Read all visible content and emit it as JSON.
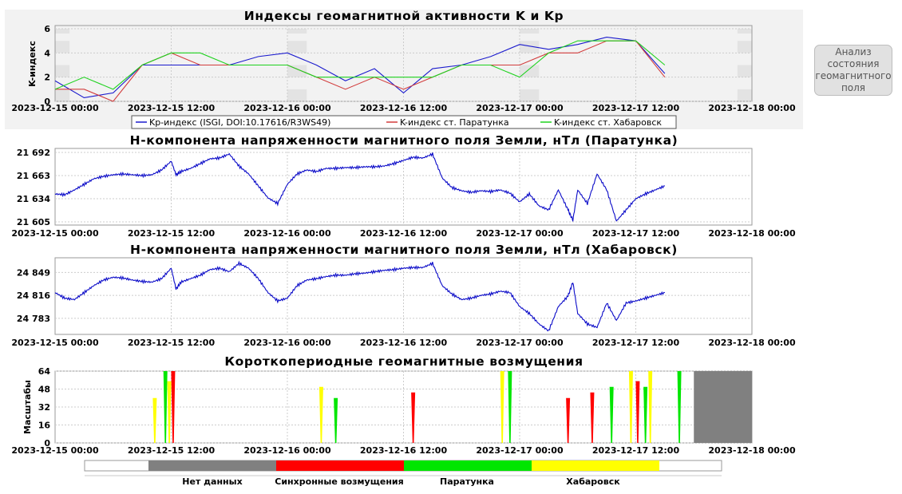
{
  "analyze_button": {
    "label": "Анализ\nсостояния\nгеомагнитного\nполя"
  },
  "time_axis": {
    "start": "2023-12-15 00:00",
    "end": "2023-12-18 00:00",
    "tick_labels": [
      "2023-12-15 00:00",
      "2023-12-15 12:00",
      "2023-12-16 00:00",
      "2023-12-16 12:00",
      "2023-12-17 00:00",
      "2023-12-17 12:00",
      "2023-12-18 00:00"
    ]
  },
  "chart_data": [
    {
      "id": "k-kp",
      "type": "line",
      "title": "Индексы геомагнитной активности K и Kp",
      "xlabel": "",
      "ylabel": "K-индекс",
      "ylim": [
        0,
        6
      ],
      "y_ticks": [
        "0",
        "2",
        "4",
        "6"
      ],
      "legend_position": "bottom",
      "shaded_bands": "alternating gray bands at y 0–1, 2–3, 4–5, 6 near day boundaries",
      "series": [
        {
          "name": "Kp-индекс (ISGI, DOI:10.17616/R3WS49)",
          "color": "#1a1acd",
          "x": [
            0,
            3,
            6,
            9,
            12,
            15,
            18,
            21,
            24,
            27,
            30,
            33,
            36,
            39,
            42,
            45,
            48,
            51,
            54,
            57,
            60,
            63
          ],
          "y": [
            1.7,
            0.3,
            0.7,
            3,
            3,
            3,
            3,
            3.7,
            4,
            3,
            1.7,
            2.7,
            0.7,
            2.7,
            3,
            3.7,
            4.7,
            4.3,
            4.7,
            5.3,
            5,
            2.3
          ]
        },
        {
          "name": "K-индекс ст. Паратунка",
          "color": "#d23c3c",
          "x": [
            0,
            3,
            6,
            9,
            12,
            15,
            18,
            21,
            24,
            27,
            30,
            33,
            36,
            39,
            42,
            45,
            48,
            51,
            54,
            57,
            60,
            63
          ],
          "y": [
            1,
            1,
            0,
            3,
            4,
            3,
            3,
            3,
            3,
            2,
            1,
            2,
            1,
            2,
            3,
            3,
            3,
            4,
            4,
            5,
            5,
            2
          ]
        },
        {
          "name": "K-индекс ст. Хабаровск",
          "color": "#1ed21e",
          "x": [
            0,
            3,
            6,
            9,
            12,
            15,
            18,
            21,
            24,
            27,
            30,
            33,
            36,
            39,
            42,
            45,
            48,
            51,
            54,
            57,
            60,
            63
          ],
          "y": [
            1,
            2,
            1,
            3,
            4,
            4,
            3,
            3,
            3,
            2,
            2,
            2,
            2,
            2,
            3,
            3,
            2,
            4,
            5,
            5,
            5,
            3
          ]
        }
      ]
    },
    {
      "id": "h-paratunka",
      "type": "line",
      "title": "H-компонента напряженности магнитного поля Земли, нТл (Паратунка)",
      "xlabel": "",
      "ylabel": "",
      "ylim": [
        21601,
        21697
      ],
      "y_ticks": [
        "21 605",
        "21 634",
        "21 663",
        "21 692"
      ],
      "series": [
        {
          "name": "",
          "color": "#0a0ac8",
          "x": [
            0,
            1,
            2,
            3,
            4,
            5,
            6,
            7,
            8,
            9,
            10,
            11,
            12,
            12.5,
            13,
            14,
            15,
            16,
            17,
            18,
            19,
            20,
            21,
            22,
            23,
            24,
            25,
            26,
            27,
            28,
            29,
            30,
            31,
            32,
            33,
            34,
            35,
            36,
            37,
            38,
            39,
            40,
            41,
            42,
            43,
            44,
            45,
            46,
            47,
            48,
            49,
            50,
            51,
            52,
            53,
            53.5,
            54,
            55,
            56,
            57,
            58,
            59,
            60,
            61,
            62,
            63
          ],
          "y": [
            21640,
            21639,
            21645,
            21652,
            21659,
            21662,
            21664,
            21665,
            21664,
            21663,
            21664,
            21670,
            21681,
            21664,
            21668,
            21672,
            21678,
            21684,
            21685,
            21690,
            21675,
            21665,
            21650,
            21635,
            21628,
            21652,
            21665,
            21670,
            21668,
            21672,
            21672,
            21673,
            21673,
            21674,
            21674,
            21675,
            21678,
            21682,
            21686,
            21685,
            21690,
            21660,
            21648,
            21644,
            21642,
            21644,
            21643,
            21645,
            21641,
            21630,
            21640,
            21625,
            21620,
            21645,
            21620,
            21607,
            21645,
            21628,
            21665,
            21645,
            21606,
            21620,
            21634,
            21640,
            21645,
            21650
          ]
        }
      ]
    },
    {
      "id": "h-khabarovsk",
      "type": "line",
      "title": "H-компонента напряженности магнитного поля Земли, нТл (Хабаровск)",
      "xlabel": "",
      "ylabel": "",
      "ylim": [
        24760,
        24870
      ],
      "y_ticks": [
        "24 783",
        "24 816",
        "24 849"
      ],
      "series": [
        {
          "name": "",
          "color": "#0a0ac8",
          "x": [
            0,
            1,
            2,
            3,
            4,
            5,
            6,
            7,
            8,
            9,
            10,
            11,
            12,
            12.5,
            13,
            14,
            15,
            16,
            17,
            18,
            19,
            20,
            21,
            22,
            23,
            24,
            25,
            26,
            27,
            28,
            29,
            30,
            31,
            32,
            33,
            34,
            35,
            36,
            37,
            38,
            39,
            40,
            41,
            42,
            43,
            44,
            45,
            46,
            47,
            48,
            49,
            50,
            51,
            52,
            53,
            53.5,
            54,
            55,
            56,
            57,
            58,
            59,
            60,
            61,
            62,
            63
          ],
          "y": [
            24820,
            24812,
            24810,
            24820,
            24830,
            24838,
            24842,
            24841,
            24838,
            24836,
            24835,
            24840,
            24855,
            24825,
            24835,
            24840,
            24845,
            24853,
            24855,
            24850,
            24862,
            24855,
            24840,
            24820,
            24808,
            24812,
            24830,
            24838,
            24840,
            24843,
            24845,
            24845,
            24847,
            24848,
            24850,
            24852,
            24853,
            24855,
            24856,
            24856,
            24862,
            24830,
            24818,
            24810,
            24812,
            24816,
            24818,
            24822,
            24820,
            24800,
            24790,
            24775,
            24765,
            24800,
            24815,
            24835,
            24790,
            24775,
            24770,
            24805,
            24780,
            24805,
            24808,
            24812,
            24816,
            24820
          ]
        }
      ]
    },
    {
      "id": "short-period",
      "type": "heatmap",
      "title": "Короткопериодные геомагнитные возмущения",
      "xlabel": "",
      "ylabel": "Масштабы",
      "ylim": [
        0,
        64
      ],
      "y_ticks": [
        "0",
        "16",
        "32",
        "48",
        "64"
      ],
      "categories": [
        "Нет данных",
        "Синхронные возмущения",
        "Паратунка",
        "Хабаровск"
      ],
      "category_colors": [
        "#808080",
        "#ff0000",
        "#00e600",
        "#ffff00"
      ],
      "no_data_interval_hours": [
        66,
        72
      ],
      "events": [
        {
          "t": 11.4,
          "scale_max": 64,
          "kind": "Паратунка"
        },
        {
          "t": 11.8,
          "scale_max": 55,
          "kind": "Хабаровск"
        },
        {
          "t": 10.3,
          "scale_max": 40,
          "kind": "Хабаровск"
        },
        {
          "t": 12.2,
          "scale_max": 64,
          "kind": "Синхронные возмущения"
        },
        {
          "t": 27.5,
          "scale_max": 50,
          "kind": "Хабаровск"
        },
        {
          "t": 29.0,
          "scale_max": 40,
          "kind": "Паратунка"
        },
        {
          "t": 37.0,
          "scale_max": 45,
          "kind": "Синхронные возмущения"
        },
        {
          "t": 46.2,
          "scale_max": 64,
          "kind": "Хабаровск"
        },
        {
          "t": 47.0,
          "scale_max": 64,
          "kind": "Паратунка"
        },
        {
          "t": 53.0,
          "scale_max": 40,
          "kind": "Синхронные возмущения"
        },
        {
          "t": 55.5,
          "scale_max": 45,
          "kind": "Синхронные возмущения"
        },
        {
          "t": 57.5,
          "scale_max": 50,
          "kind": "Паратунка"
        },
        {
          "t": 59.5,
          "scale_max": 64,
          "kind": "Хабаровск"
        },
        {
          "t": 60.2,
          "scale_max": 55,
          "kind": "Синхронные возмущения"
        },
        {
          "t": 61.0,
          "scale_max": 50,
          "kind": "Паратунка"
        },
        {
          "t": 61.5,
          "scale_max": 64,
          "kind": "Хабаровск"
        },
        {
          "t": 64.5,
          "scale_max": 64,
          "kind": "Паратунка"
        }
      ]
    }
  ]
}
